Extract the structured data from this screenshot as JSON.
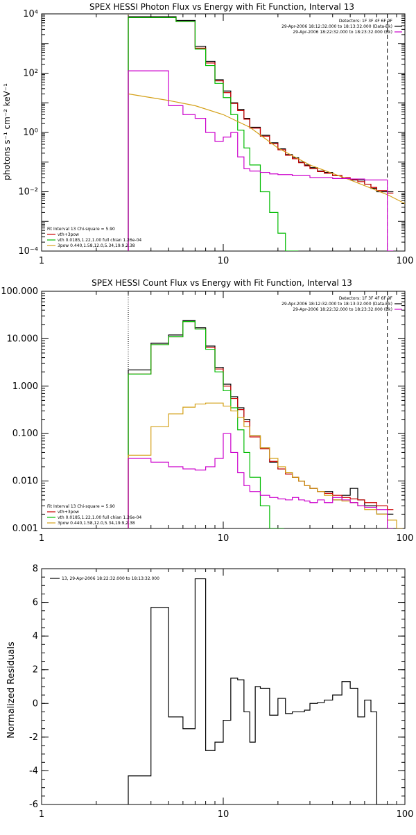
{
  "chart_data": [
    {
      "type": "line",
      "title": "SPEX HESSI Photon Flux vs Energy with Fit Function, Interval 13",
      "xlabel": "",
      "ylabel": "photons s⁻¹ cm⁻² keV⁻¹",
      "xscale": "log",
      "yscale": "log",
      "xlim": [
        1,
        100
      ],
      "ylim": [
        0.0001,
        10000
      ],
      "x_ticks": [
        1,
        10,
        100
      ],
      "x_tick_labels": [
        "1",
        "10",
        "100"
      ],
      "y_ticks": [
        0.0001,
        0.01,
        1,
        100,
        10000
      ],
      "y_tick_labels": [
        "10⁻⁴",
        "10⁻²",
        "10⁰",
        "10²",
        "10⁴"
      ],
      "vlines": [
        {
          "x": 3,
          "color": "#d4a017",
          "style": "dotted"
        },
        {
          "x": 80,
          "color": "#000000",
          "style": "dashed"
        }
      ],
      "legend_top_right": [
        {
          "text": "Detectors: 1F 3F 4F 6F 9F",
          "color": "#000000"
        },
        {
          "text": "29-Apr-2006 18:12:32.000 to 18:13:32.000 (Data-Bk)",
          "color": "#000000"
        },
        {
          "text": "29-Apr-2006 18:22:32.000 to 18:23:32.000 (Bk)",
          "color": "#cc00cc"
        }
      ],
      "legend_bottom_left": [
        {
          "text": "Fit Interval 13   Chi-square = 5.90",
          "color": "#000000"
        },
        {
          "text": "vth+3pow",
          "color": "#cc0000"
        },
        {
          "text": "vth 0.0185,1.22,1.00  full chian 1.26e-04",
          "color": "#00bb00"
        },
        {
          "text": "3pow 0.440,1.58,12.0,5.34,19.9,2.38",
          "color": "#d4a017"
        }
      ],
      "series": [
        {
          "color": "#000000",
          "type": "step",
          "x": [
            3,
            4,
            5.5,
            7,
            8,
            9,
            10,
            11,
            12,
            13,
            14,
            16,
            18,
            20,
            22,
            24,
            26,
            28,
            30,
            33,
            36,
            40,
            45,
            50,
            55,
            60,
            65,
            70,
            80
          ],
          "y": [
            8000,
            8000,
            6000,
            800,
            250,
            60,
            25,
            10,
            6,
            3,
            1.5,
            0.8,
            0.45,
            0.28,
            0.18,
            0.14,
            0.1,
            0.08,
            0.065,
            0.05,
            0.045,
            0.035,
            0.028,
            0.025,
            0.025,
            0.018,
            0.013,
            0.01,
            0.01
          ]
        },
        {
          "color": "#cc0000",
          "type": "step",
          "x": [
            3,
            4,
            5.5,
            7,
            8,
            9,
            10,
            11,
            12,
            13,
            14,
            16,
            18,
            20,
            22,
            24,
            26,
            28,
            30,
            33,
            36,
            40,
            45,
            50,
            55,
            60,
            65,
            70,
            80
          ],
          "y": [
            7500,
            7500,
            5500,
            700,
            220,
            55,
            22,
            9.5,
            5.5,
            2.8,
            1.4,
            0.75,
            0.42,
            0.26,
            0.17,
            0.13,
            0.095,
            0.075,
            0.06,
            0.048,
            0.042,
            0.035,
            0.03,
            0.026,
            0.022,
            0.018,
            0.014,
            0.011,
            0.009
          ]
        },
        {
          "color": "#00bb00",
          "type": "step",
          "x": [
            3,
            4,
            5.5,
            7,
            8,
            9,
            10,
            11,
            12,
            13,
            14,
            16,
            18,
            20,
            22,
            24
          ],
          "y": [
            7500,
            7500,
            5500,
            650,
            180,
            45,
            15,
            4,
            1.2,
            0.3,
            0.08,
            0.01,
            0.002,
            0.0004,
            0.0001,
            0.0001
          ]
        },
        {
          "color": "#d4a017",
          "type": "line",
          "x": [
            3,
            4,
            5,
            7,
            10,
            14,
            20,
            30,
            50,
            80,
            100
          ],
          "y": [
            20,
            15,
            12,
            8,
            4,
            1.5,
            0.3,
            0.08,
            0.025,
            0.008,
            0.004
          ]
        },
        {
          "color": "#cc00cc",
          "type": "step",
          "x": [
            3,
            4,
            5,
            6,
            7,
            8,
            9,
            10,
            11,
            12,
            13,
            14,
            16,
            18,
            20,
            24,
            30,
            40,
            50,
            60,
            70,
            80
          ],
          "y": [
            120,
            120,
            8,
            4,
            3,
            1,
            0.5,
            0.7,
            1.0,
            0.15,
            0.06,
            0.05,
            0.045,
            0.04,
            0.038,
            0.035,
            0.03,
            0.028,
            0.027,
            0.025,
            0.025,
            0.0001
          ]
        }
      ]
    },
    {
      "type": "line",
      "title": "SPEX HESSI Count Flux vs Energy with Fit Function, Interval 13",
      "xlabel": "",
      "ylabel": "",
      "xscale": "log",
      "yscale": "log",
      "xlim": [
        1,
        100
      ],
      "ylim": [
        0.001,
        100
      ],
      "x_ticks": [
        1,
        10,
        100
      ],
      "x_tick_labels": [
        "1",
        "10",
        "100"
      ],
      "y_ticks": [
        0.001,
        0.01,
        0.1,
        1,
        10,
        100
      ],
      "y_tick_labels": [
        "0.001",
        "0.010",
        "0.100",
        "1.000",
        "10.000",
        "100.000"
      ],
      "vlines": [
        {
          "x": 3,
          "color": "#000000",
          "style": "dotted"
        },
        {
          "x": 80,
          "color": "#000000",
          "style": "dashed"
        }
      ],
      "legend_top_right": [
        {
          "text": "Detectors: 1F 3F 4F 6F 9F",
          "color": "#000000"
        },
        {
          "text": "29-Apr-2006 18:12:32.000 to 18:13:32.000 (Data-Bk)",
          "color": "#000000"
        },
        {
          "text": "29-Apr-2006 18:22:32.000 to 18:23:32.000 (Bk)",
          "color": "#cc00cc"
        }
      ],
      "legend_bottom_left": [
        {
          "text": "Fit Interval 13   Chi-square = 5.90",
          "color": "#000000"
        },
        {
          "text": "vth+3pow",
          "color": "#cc0000"
        },
        {
          "text": "vth 0.0185,1.22,1.00  full chian 1.26e-04",
          "color": "#00bb00"
        },
        {
          "text": "3pow 0.440,1.58,12.0,5.34,19.9,2.38",
          "color": "#d4a017"
        }
      ],
      "series": [
        {
          "color": "#000000",
          "type": "step",
          "x": [
            3,
            4,
            5,
            6,
            7,
            8,
            9,
            10,
            11,
            12,
            13,
            14,
            16,
            18,
            20,
            22,
            24,
            26,
            28,
            30,
            33,
            36,
            40,
            45,
            50,
            55,
            60,
            70,
            80
          ],
          "y": [
            2.2,
            8,
            12,
            24,
            17,
            7,
            2.5,
            1.1,
            0.6,
            0.35,
            0.2,
            0.09,
            0.05,
            0.025,
            0.018,
            0.015,
            0.012,
            0.01,
            0.008,
            0.007,
            0.006,
            0.006,
            0.004,
            0.005,
            0.007,
            0.004,
            0.003,
            0.002,
            0.002
          ]
        },
        {
          "color": "#cc0000",
          "type": "step",
          "x": [
            3,
            4,
            5,
            6,
            7,
            8,
            9,
            10,
            11,
            12,
            13,
            14,
            16,
            18,
            20,
            22,
            24,
            26,
            28,
            30,
            33,
            36,
            40,
            45,
            50,
            55,
            60,
            70,
            80
          ],
          "y": [
            1.8,
            7.5,
            11,
            23,
            16,
            6.5,
            2.3,
            1.0,
            0.55,
            0.32,
            0.18,
            0.085,
            0.048,
            0.026,
            0.018,
            0.014,
            0.012,
            0.01,
            0.008,
            0.007,
            0.006,
            0.0055,
            0.005,
            0.0045,
            0.0042,
            0.004,
            0.0035,
            0.003,
            0.0025
          ]
        },
        {
          "color": "#00bb00",
          "type": "step",
          "x": [
            3,
            4,
            5,
            6,
            7,
            8,
            9,
            10,
            11,
            12,
            13,
            14,
            16,
            18,
            20
          ],
          "y": [
            1.8,
            7.5,
            11,
            23,
            16,
            6,
            2,
            0.8,
            0.35,
            0.12,
            0.04,
            0.012,
            0.003,
            0.001,
            0.001
          ]
        },
        {
          "color": "#d4a017",
          "type": "step",
          "x": [
            3,
            4,
            5,
            6,
            7,
            8,
            9,
            10,
            11,
            12,
            13,
            14,
            16,
            18,
            20,
            22,
            24,
            26,
            28,
            30,
            33,
            36,
            40,
            45,
            50,
            55,
            60,
            70,
            80,
            90
          ],
          "y": [
            0.035,
            0.14,
            0.26,
            0.36,
            0.42,
            0.44,
            0.44,
            0.38,
            0.3,
            0.22,
            0.14,
            0.09,
            0.05,
            0.03,
            0.02,
            0.015,
            0.012,
            0.01,
            0.008,
            0.007,
            0.006,
            0.005,
            0.004,
            0.0038,
            0.0035,
            0.003,
            0.0025,
            0.002,
            0.0015,
            0.001
          ]
        },
        {
          "color": "#cc00cc",
          "type": "step",
          "x": [
            3,
            4,
            5,
            6,
            7,
            8,
            9,
            10,
            11,
            12,
            13,
            14,
            16,
            18,
            20,
            22,
            24,
            26,
            28,
            30,
            33,
            36,
            40,
            45,
            50,
            55,
            60,
            70,
            80
          ],
          "y": [
            0.03,
            0.025,
            0.02,
            0.018,
            0.017,
            0.02,
            0.03,
            0.1,
            0.04,
            0.015,
            0.008,
            0.006,
            0.005,
            0.0045,
            0.0042,
            0.004,
            0.0045,
            0.004,
            0.0038,
            0.0035,
            0.004,
            0.0035,
            0.0045,
            0.004,
            0.0035,
            0.003,
            0.0028,
            0.0025,
            0.001
          ]
        }
      ]
    },
    {
      "type": "line",
      "title": "",
      "xlabel": "",
      "ylabel": "Normalized Residuals",
      "xscale": "log",
      "yscale": "linear",
      "xlim": [
        1,
        100
      ],
      "ylim": [
        -6,
        8
      ],
      "x_ticks": [
        1,
        10,
        100
      ],
      "x_tick_labels": [
        "1",
        "10",
        "100"
      ],
      "y_ticks": [
        -6,
        -4,
        -2,
        0,
        2,
        4,
        6,
        8
      ],
      "y_tick_labels": [
        "-6",
        "-4",
        "-2",
        "0",
        "2",
        "4",
        "6",
        "8"
      ],
      "legend_top_left": [
        {
          "text": "13, 29-Apr-2006 18:22:32.000 to 18:13:32.000",
          "color": "#000000"
        }
      ],
      "series": [
        {
          "color": "#000000",
          "type": "step",
          "x": [
            3,
            4,
            5,
            6,
            7,
            8,
            9,
            10,
            11,
            12,
            13,
            14,
            15,
            16,
            17,
            18,
            20,
            22,
            24,
            26,
            28,
            30,
            33,
            36,
            40,
            45,
            50,
            55,
            60,
            65,
            70,
            80
          ],
          "y": [
            -4.3,
            5.7,
            -0.8,
            -1.5,
            7.4,
            -2.8,
            -2.3,
            -1.0,
            1.5,
            1.4,
            -0.5,
            -2.3,
            1.0,
            0.9,
            0.9,
            -0.7,
            0.3,
            -0.6,
            -0.5,
            -0.5,
            -0.4,
            0.0,
            0.05,
            0.2,
            0.5,
            1.3,
            0.9,
            -0.8,
            0.2,
            -0.5,
            -6.0,
            -6.0
          ]
        }
      ]
    }
  ]
}
